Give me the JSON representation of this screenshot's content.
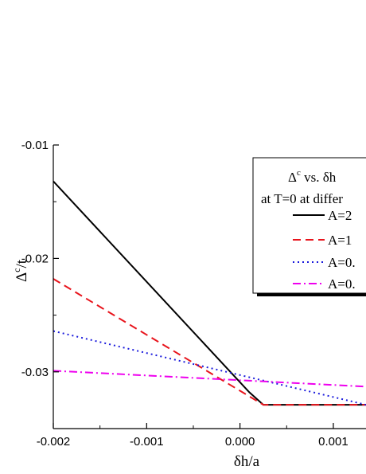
{
  "chart_data": {
    "type": "line",
    "title": "",
    "xlabel": "δh/a",
    "ylabel_base": "Δ",
    "ylabel_sup": "c",
    "ylabel_rest": "/t",
    "xlim": [
      -0.002,
      0.00135
    ],
    "ylim": [
      -0.035,
      -0.01
    ],
    "x_ticks": [
      -0.002,
      -0.001,
      0.0,
      0.001
    ],
    "x_tick_labels": [
      "-0.002",
      "-0.001",
      "0.000",
      "0.001"
    ],
    "y_ticks": [
      -0.01,
      -0.02,
      -0.03
    ],
    "y_tick_labels": [
      "-0.01",
      "-0.02",
      "-0.03"
    ],
    "legend": {
      "position": "top-right",
      "title_line1_base": "Δ",
      "title_line1_sup": "c",
      "title_line1_rest": " vs. δh",
      "title_line2": "at T=0 at differ"
    },
    "series": [
      {
        "name": "A=2",
        "color": "#000000",
        "style": "solid",
        "points": [
          [
            -0.002,
            -0.0132
          ],
          [
            0.0001,
            -0.0318
          ],
          [
            0.00025,
            -0.0329
          ],
          [
            0.00135,
            -0.0329
          ]
        ]
      },
      {
        "name": "A=1",
        "color": "#e8141c",
        "style": "dashed",
        "points": [
          [
            -0.002,
            -0.0218
          ],
          [
            0.00025,
            -0.0329
          ],
          [
            0.00135,
            -0.0329
          ]
        ]
      },
      {
        "name": "A=0.",
        "color": "#1a1adc",
        "style": "dotted",
        "points": [
          [
            -0.002,
            -0.0264
          ],
          [
            0.00135,
            -0.0329
          ]
        ]
      },
      {
        "name": "A=0.",
        "color": "#ee00ee",
        "style": "dashdot",
        "points": [
          [
            -0.002,
            -0.0299
          ],
          [
            0.00135,
            -0.0313
          ]
        ]
      }
    ]
  }
}
